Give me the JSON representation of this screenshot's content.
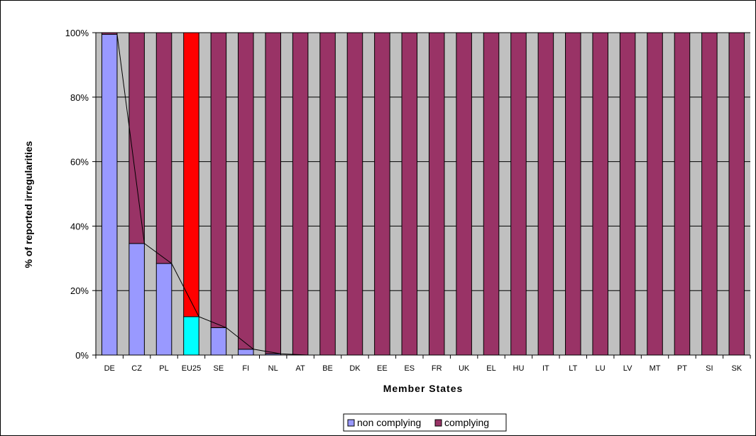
{
  "chart_data": {
    "type": "bar",
    "stacked": true,
    "percent_stacked": true,
    "categories": [
      "DE",
      "CZ",
      "PL",
      "EU25",
      "SE",
      "FI",
      "NL",
      "AT",
      "BE",
      "DK",
      "EE",
      "ES",
      "FR",
      "UK",
      "EL",
      "HU",
      "IT",
      "LT",
      "LU",
      "LV",
      "MT",
      "PT",
      "SI",
      "SK"
    ],
    "series": [
      {
        "name": "non complying",
        "color": "#9999ff",
        "values": [
          99.5,
          34.6,
          28.4,
          11.9,
          8.5,
          1.8,
          0.4,
          0,
          0,
          0,
          0,
          0,
          0,
          0,
          0,
          0,
          0,
          0,
          0,
          0,
          0,
          0,
          0,
          0
        ]
      },
      {
        "name": "complying",
        "color": "#993366",
        "values": [
          0.5,
          65.4,
          71.6,
          88.1,
          91.5,
          98.2,
          99.6,
          100,
          100,
          100,
          100,
          100,
          100,
          100,
          100,
          100,
          100,
          100,
          100,
          100,
          100,
          100,
          100,
          100
        ]
      }
    ],
    "highlight": {
      "category": "EU25",
      "colors": [
        "#00ffff",
        "#ff0000"
      ]
    },
    "trend_line": "connects tops of non complying segments",
    "xlabel": "Member States",
    "ylabel": "% of reported irregularities",
    "ylim": [
      0,
      100
    ],
    "yticks": [
      "0%",
      "20%",
      "40%",
      "60%",
      "80%",
      "100%"
    ],
    "ytick_values": [
      0,
      20,
      40,
      60,
      80,
      100
    ],
    "plot_background": "#c0c0c0",
    "grid": true,
    "legend_position": "bottom-center"
  }
}
